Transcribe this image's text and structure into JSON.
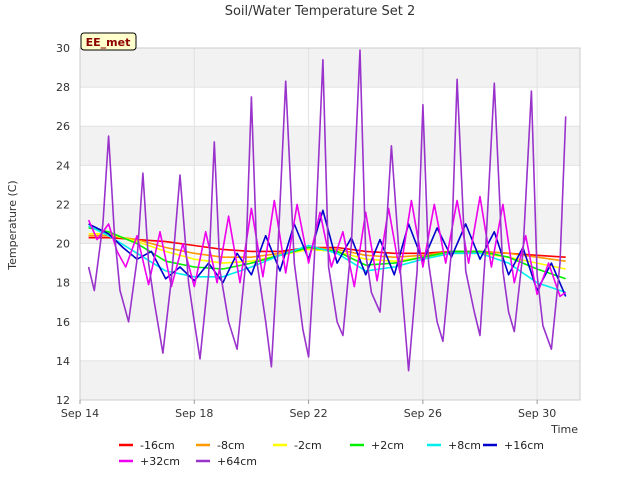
{
  "chart_data": {
    "type": "line",
    "title": "Soil/Water Temperature Set 2",
    "xlabel": "Time",
    "ylabel": "Temperature (C)",
    "ylim": [
      12,
      30
    ],
    "xlim_days": [
      14,
      31.5
    ],
    "grid": true,
    "badge": "EE_met",
    "x_ticks": [
      {
        "day": 14,
        "label": "Sep 14"
      },
      {
        "day": 18,
        "label": "Sep 18"
      },
      {
        "day": 22,
        "label": "Sep 22"
      },
      {
        "day": 26,
        "label": "Sep 26"
      },
      {
        "day": 30,
        "label": "Sep 30"
      }
    ],
    "y_ticks": [
      12,
      14,
      16,
      18,
      20,
      22,
      24,
      26,
      28,
      30
    ],
    "legend_position": "bottom",
    "series": [
      {
        "name": "-16cm",
        "color": "#ff0000",
        "x": [
          14.3,
          15,
          16,
          17,
          18,
          19,
          20,
          21,
          22,
          23,
          24,
          25,
          26,
          27,
          28,
          29,
          30,
          31
        ],
        "y": [
          20.3,
          20.3,
          20.2,
          20.1,
          19.9,
          19.7,
          19.6,
          19.6,
          19.8,
          19.8,
          19.6,
          19.5,
          19.5,
          19.6,
          19.6,
          19.5,
          19.4,
          19.3
        ]
      },
      {
        "name": "-8cm",
        "color": "#ff9900",
        "x": [
          14.3,
          15,
          16,
          17,
          18,
          19,
          20,
          21,
          22,
          23,
          24,
          25,
          26,
          27,
          28,
          29,
          30,
          31
        ],
        "y": [
          20.4,
          20.4,
          20.2,
          19.8,
          19.5,
          19.3,
          19.3,
          19.5,
          19.8,
          19.7,
          19.4,
          19.3,
          19.4,
          19.6,
          19.6,
          19.5,
          19.3,
          19.1
        ]
      },
      {
        "name": "-2cm",
        "color": "#ffff00",
        "x": [
          14.3,
          15,
          16,
          17,
          18,
          19,
          20,
          21,
          22,
          23,
          24,
          25,
          26,
          27,
          28,
          29,
          30,
          31
        ],
        "y": [
          20.5,
          20.5,
          20.1,
          19.6,
          19.2,
          19.0,
          19.1,
          19.4,
          19.7,
          19.6,
          19.2,
          19.1,
          19.3,
          19.5,
          19.5,
          19.3,
          19.0,
          18.7
        ]
      },
      {
        "name": "+2cm",
        "color": "#00ee00",
        "x": [
          14.3,
          15,
          16,
          17,
          18,
          19,
          20,
          21,
          22,
          23,
          24,
          25,
          26,
          27,
          28,
          29,
          30,
          31
        ],
        "y": [
          20.8,
          20.6,
          20.0,
          19.1,
          18.8,
          18.7,
          19.0,
          19.4,
          19.8,
          19.6,
          18.9,
          19.0,
          19.3,
          19.6,
          19.6,
          19.3,
          18.7,
          18.2
        ]
      },
      {
        "name": "+8cm",
        "color": "#00eeee",
        "x": [
          14.3,
          15,
          16,
          17,
          18,
          19,
          20,
          21,
          22,
          23,
          24,
          25,
          26,
          27,
          28,
          29,
          30,
          31
        ],
        "y": [
          20.9,
          20.4,
          19.5,
          18.6,
          18.3,
          18.3,
          18.8,
          19.4,
          19.9,
          19.5,
          18.6,
          18.8,
          19.2,
          19.5,
          19.5,
          19.0,
          18.0,
          17.5
        ]
      },
      {
        "name": "+16cm",
        "color": "#0000cc",
        "x": [
          14.3,
          15,
          15.5,
          16,
          16.5,
          17,
          17.5,
          18,
          18.5,
          19,
          19.5,
          20,
          20.5,
          21,
          21.5,
          22,
          22.5,
          23,
          23.5,
          24,
          24.5,
          25,
          25.5,
          26,
          26.5,
          27,
          27.5,
          28,
          28.5,
          29,
          29.5,
          30,
          30.5,
          31
        ],
        "y": [
          21.0,
          20.5,
          19.8,
          19.2,
          19.6,
          18.2,
          18.8,
          18.1,
          19.0,
          18.0,
          19.5,
          18.4,
          20.4,
          18.6,
          21.0,
          19.2,
          21.7,
          19.0,
          20.3,
          18.4,
          20.2,
          18.4,
          21.0,
          19.1,
          20.8,
          19.3,
          21.0,
          19.2,
          20.6,
          18.4,
          19.8,
          17.6,
          19.0,
          17.3
        ]
      },
      {
        "name": "+32cm",
        "color": "#ee00ee",
        "x": [
          14.3,
          14.6,
          15,
          15.3,
          15.6,
          16,
          16.4,
          16.8,
          17.2,
          17.6,
          18,
          18.4,
          18.8,
          19.2,
          19.6,
          20,
          20.4,
          20.8,
          21.2,
          21.6,
          22,
          22.4,
          22.8,
          23.2,
          23.6,
          24,
          24.4,
          24.8,
          25.2,
          25.6,
          26,
          26.4,
          26.8,
          27.2,
          27.6,
          28,
          28.4,
          28.8,
          29.2,
          29.6,
          30,
          30.4,
          30.8,
          31
        ],
        "y": [
          21.2,
          20.2,
          21.0,
          19.6,
          18.8,
          20.4,
          17.9,
          20.6,
          17.8,
          20.0,
          17.8,
          20.6,
          18.0,
          21.4,
          18.0,
          21.8,
          18.3,
          22.2,
          18.5,
          22.0,
          19.0,
          21.6,
          18.8,
          20.6,
          17.8,
          21.6,
          18.1,
          21.8,
          18.5,
          22.2,
          18.8,
          22.0,
          19.0,
          22.2,
          19.0,
          22.4,
          18.8,
          22.0,
          18.0,
          20.4,
          17.4,
          19.0,
          17.3,
          17.5
        ]
      },
      {
        "name": "+64cm",
        "color": "#9933cc",
        "x": [
          14.3,
          14.5,
          14.8,
          15.0,
          15.2,
          15.4,
          15.7,
          16.0,
          16.2,
          16.4,
          16.6,
          16.9,
          17.2,
          17.5,
          17.8,
          18.0,
          18.2,
          18.5,
          18.7,
          18.9,
          19.2,
          19.5,
          19.8,
          20.0,
          20.2,
          20.5,
          20.7,
          20.9,
          21.2,
          21.5,
          21.8,
          22.0,
          22.2,
          22.5,
          22.7,
          23.0,
          23.2,
          23.5,
          23.8,
          24.0,
          24.2,
          24.5,
          24.7,
          24.9,
          25.2,
          25.5,
          25.8,
          26.0,
          26.2,
          26.5,
          26.7,
          27.0,
          27.2,
          27.5,
          27.8,
          28.0,
          28.2,
          28.5,
          28.8,
          29.0,
          29.2,
          29.5,
          29.8,
          30.0,
          30.2,
          30.5,
          30.8,
          31.0
        ],
        "y": [
          18.8,
          17.6,
          21.0,
          25.5,
          20.6,
          17.6,
          16.0,
          19.2,
          23.6,
          19.0,
          17.0,
          14.4,
          18.2,
          23.5,
          18.0,
          16.0,
          14.1,
          18.4,
          25.2,
          18.6,
          16.0,
          14.6,
          19.0,
          27.5,
          19.0,
          16.0,
          13.7,
          18.8,
          28.3,
          19.0,
          15.6,
          14.2,
          19.2,
          29.4,
          18.8,
          16.0,
          15.3,
          20.0,
          29.9,
          19.5,
          17.5,
          16.5,
          20.2,
          25.0,
          18.8,
          13.5,
          18.6,
          27.1,
          19.0,
          16.0,
          15.0,
          19.6,
          28.4,
          18.6,
          16.5,
          15.3,
          19.8,
          28.2,
          18.6,
          16.5,
          15.5,
          19.5,
          27.8,
          18.4,
          15.8,
          14.6,
          19.0,
          26.5
        ]
      }
    ]
  }
}
